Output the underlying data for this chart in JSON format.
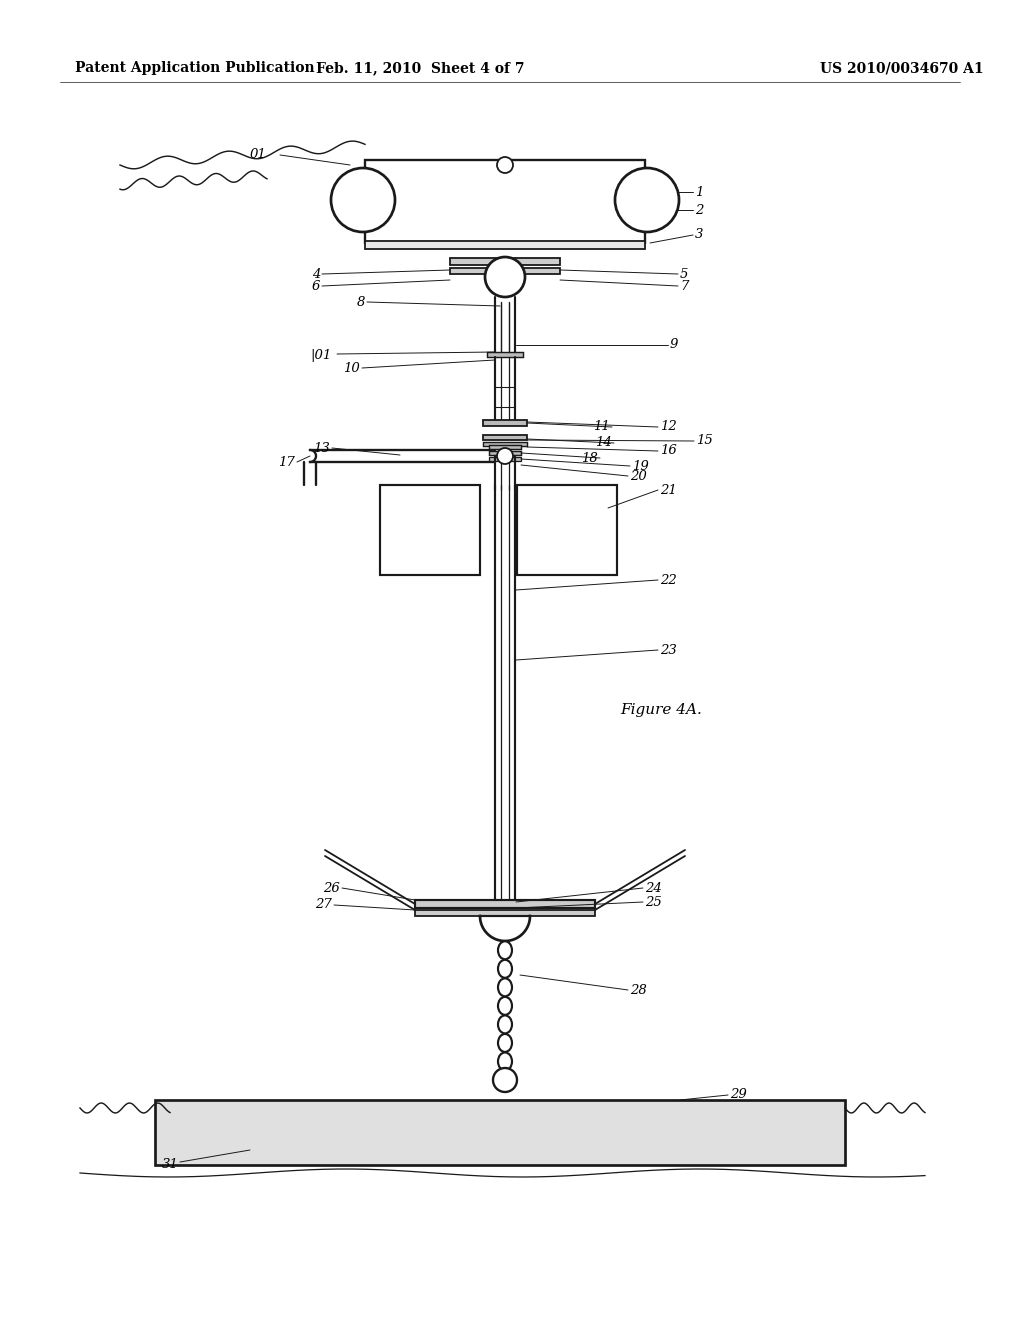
{
  "title_left": "Patent Application Publication",
  "title_center": "Feb. 11, 2010  Sheet 4 of 7",
  "title_right": "US 2010/0034670 A1",
  "figure_label": "Figure 4A.",
  "bg_color": "#ffffff",
  "line_color": "#1a1a1a",
  "lw": 1.3
}
